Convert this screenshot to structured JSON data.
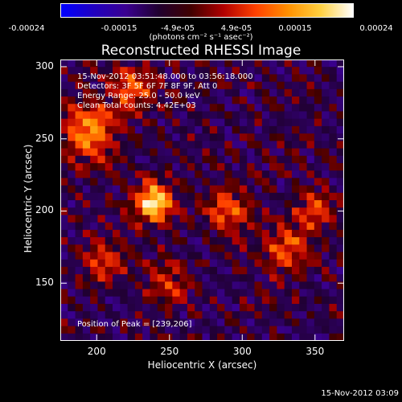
{
  "colorbar": {
    "ticks": [
      "-0.00024",
      "-0.00015",
      "-4.9e-05",
      "4.9e-05",
      "0.00015",
      "0.00024"
    ],
    "units": "(photons cm⁻² s⁻¹ asec⁻²)",
    "colors": {
      "negative": [
        "#0000ff",
        "#2000c0",
        "#3a0090",
        "#200030"
      ],
      "positive": [
        "#400000",
        "#b00000",
        "#ff4000",
        "#ff9000",
        "#ffd040",
        "#ffffff"
      ]
    }
  },
  "annotations": {
    "time_range": "15-Nov-2012 03:51:48.000 to 03:56:18.000",
    "detectors": "Detectors: 3F 5F 6F 7F 8F 9F, Att 0",
    "energy": "Energy Range: 25.0 - 50.0 keV",
    "method": "Clean     Total counts: 4.42E+03",
    "peak": "Position of Peak = [239,206]"
  },
  "footer": "15-Nov-2012 03:09",
  "chart_data": {
    "type": "heatmap",
    "title": "Reconstructed RHESSI Image",
    "xlabel": "Heliocentric X (arcsec)",
    "ylabel": "Heliocentric Y (arcsec)",
    "xlim": [
      175,
      370
    ],
    "ylim": [
      110,
      305
    ],
    "xticks": [
      200,
      250,
      300,
      350
    ],
    "yticks": [
      150,
      200,
      250,
      300
    ],
    "zlim": [
      -0.00024,
      0.00024
    ],
    "peak": [
      239,
      206
    ],
    "sources": [
      {
        "x": 239,
        "y": 206,
        "r": 9,
        "amp": 0.00024
      },
      {
        "x": 195,
        "y": 255,
        "r": 14,
        "amp": 0.00015
      },
      {
        "x": 225,
        "y": 285,
        "r": 10,
        "amp": 0.00012
      },
      {
        "x": 290,
        "y": 200,
        "r": 10,
        "amp": 0.00012
      },
      {
        "x": 330,
        "y": 175,
        "r": 12,
        "amp": 0.00011
      },
      {
        "x": 350,
        "y": 200,
        "r": 9,
        "amp": 0.0001
      },
      {
        "x": 205,
        "y": 165,
        "r": 10,
        "amp": 0.0001
      },
      {
        "x": 250,
        "y": 150,
        "r": 10,
        "amp": 9e-05
      }
    ]
  }
}
